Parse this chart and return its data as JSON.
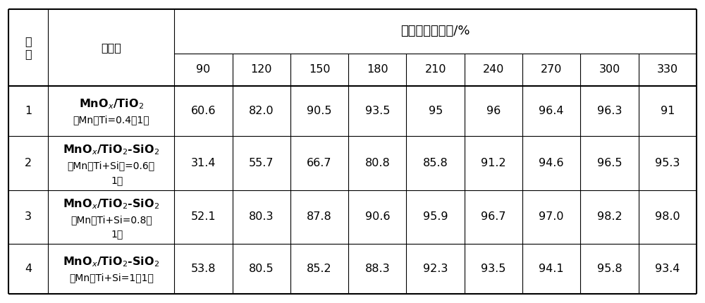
{
  "header_top": "氮氧化物转化率/%",
  "header_col0": "例\n子",
  "header_col1": "催化剂",
  "header_row2": [
    "90",
    "120",
    "150",
    "180",
    "210",
    "240",
    "270",
    "300",
    "330"
  ],
  "rows": [
    {
      "id": "1",
      "cat1": "MnO$_x$/TiO$_2$",
      "cat2": "（Mn：Ti=0.4：1）",
      "values": [
        "60.6",
        "82.0",
        "90.5",
        "93.5",
        "95",
        "96",
        "96.4",
        "96.3",
        "91"
      ],
      "multiline": false
    },
    {
      "id": "2",
      "cat1": "MnO$_x$/TiO$_2$-SiO$_2$",
      "cat2": "（Mn：Ti+Si）=0.6：\n1）",
      "values": [
        "31.4",
        "55.7",
        "66.7",
        "80.8",
        "85.8",
        "91.2",
        "94.6",
        "96.5",
        "95.3"
      ],
      "multiline": true
    },
    {
      "id": "3",
      "cat1": "MnO$_x$/TiO$_2$-SiO$_2$",
      "cat2": "（Mn：Ti+Si=0.8：\n1）",
      "values": [
        "52.1",
        "80.3",
        "87.8",
        "90.6",
        "95.9",
        "96.7",
        "97.0",
        "98.2",
        "98.0"
      ],
      "multiline": true
    },
    {
      "id": "4",
      "cat1": "MnO$_x$/TiO$_2$-SiO$_2$",
      "cat2": "（Mn：Ti+Si=1：1）",
      "values": [
        "53.8",
        "80.5",
        "85.2",
        "88.3",
        "92.3",
        "93.5",
        "94.1",
        "95.8",
        "93.4"
      ],
      "multiline": false
    }
  ],
  "bg_color": "#ffffff",
  "text_color": "#000000",
  "line_color": "#000000",
  "font_size": 11.5,
  "small_font_size": 10.0,
  "header_font_size": 13
}
